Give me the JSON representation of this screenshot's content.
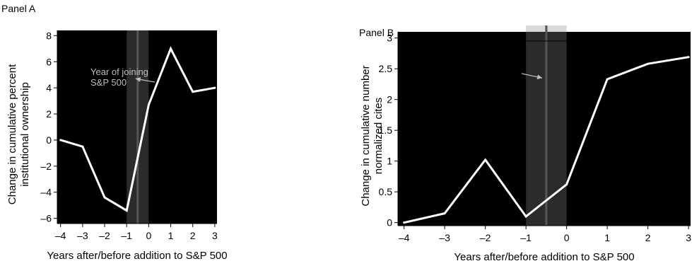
{
  "chart_data": [
    {
      "type": "line",
      "panel_label": "Panel A",
      "title": "",
      "xlabel": "Years after/before addition to S&P 500",
      "ylabel": [
        "Change in cumulative percent",
        "institutional ownership"
      ],
      "x": [
        -4,
        -3,
        -2,
        -1,
        0,
        1,
        2,
        3
      ],
      "series": [
        {
          "values": [
            0.0,
            -0.5,
            -4.4,
            -5.4,
            2.7,
            7.0,
            3.7,
            4.0
          ]
        }
      ],
      "xlim": [
        -4.15,
        3.1
      ],
      "ylim": [
        -6.4,
        8.4
      ],
      "xticks": [
        -4,
        -3,
        -2,
        -1,
        0,
        1,
        2,
        3
      ],
      "xtick_labels": [
        "–4",
        "–3",
        "–2",
        "–1",
        "0",
        "1",
        "2",
        "3"
      ],
      "yticks": [
        -6,
        -4,
        -2,
        0,
        2,
        4,
        6,
        8
      ],
      "ytick_labels": [
        "–6",
        "–4",
        "–2",
        "0",
        "2",
        "4",
        "6",
        "8"
      ],
      "shaded_band": {
        "x": [
          -1,
          0
        ],
        "center_line": -0.5
      },
      "annotation": {
        "lines": [
          "Year of joining",
          "S&P 500"
        ],
        "point": [
          -0.6,
          4.7
        ]
      },
      "background": "#000000",
      "line_color": "#ffffff",
      "band_color": "#2b2b2b",
      "center_line_color": "#555555",
      "grid": false
    },
    {
      "type": "line",
      "panel_label": "Panel B",
      "title": "",
      "xlabel": "Years after/before addition to S&P 500",
      "ylabel": [
        "Change in cumulative number",
        "normalized cites"
      ],
      "x": [
        -4,
        -3,
        -2,
        -1,
        0,
        1,
        2,
        3
      ],
      "series": [
        {
          "values": [
            0.0,
            0.15,
            1.02,
            0.1,
            0.62,
            2.33,
            2.58,
            2.69
          ]
        }
      ],
      "xlim": [
        -4.15,
        3.05
      ],
      "ylim": [
        -0.05,
        3.1
      ],
      "xticks": [
        -4,
        -3,
        -2,
        -1,
        0,
        1,
        2,
        3
      ],
      "xtick_labels": [
        "–4",
        "–3",
        "–2",
        "–1",
        "0",
        "1",
        "2",
        "3"
      ],
      "yticks": [
        0,
        0.5,
        1,
        1.5,
        2,
        2.5,
        3
      ],
      "ytick_labels": [
        "0",
        "0.5",
        "1",
        "1.5",
        "2",
        "2.5",
        "3"
      ],
      "shaded_band": {
        "x": [
          -1,
          0
        ],
        "center_line": -0.5
      },
      "annotation": {
        "lines": [],
        "point": [
          -0.6,
          2.35
        ]
      },
      "background": "#000000",
      "line_color": "#ffffff",
      "band_color": "#2b2b2b",
      "center_line_color": "#555555",
      "grid": false
    }
  ]
}
